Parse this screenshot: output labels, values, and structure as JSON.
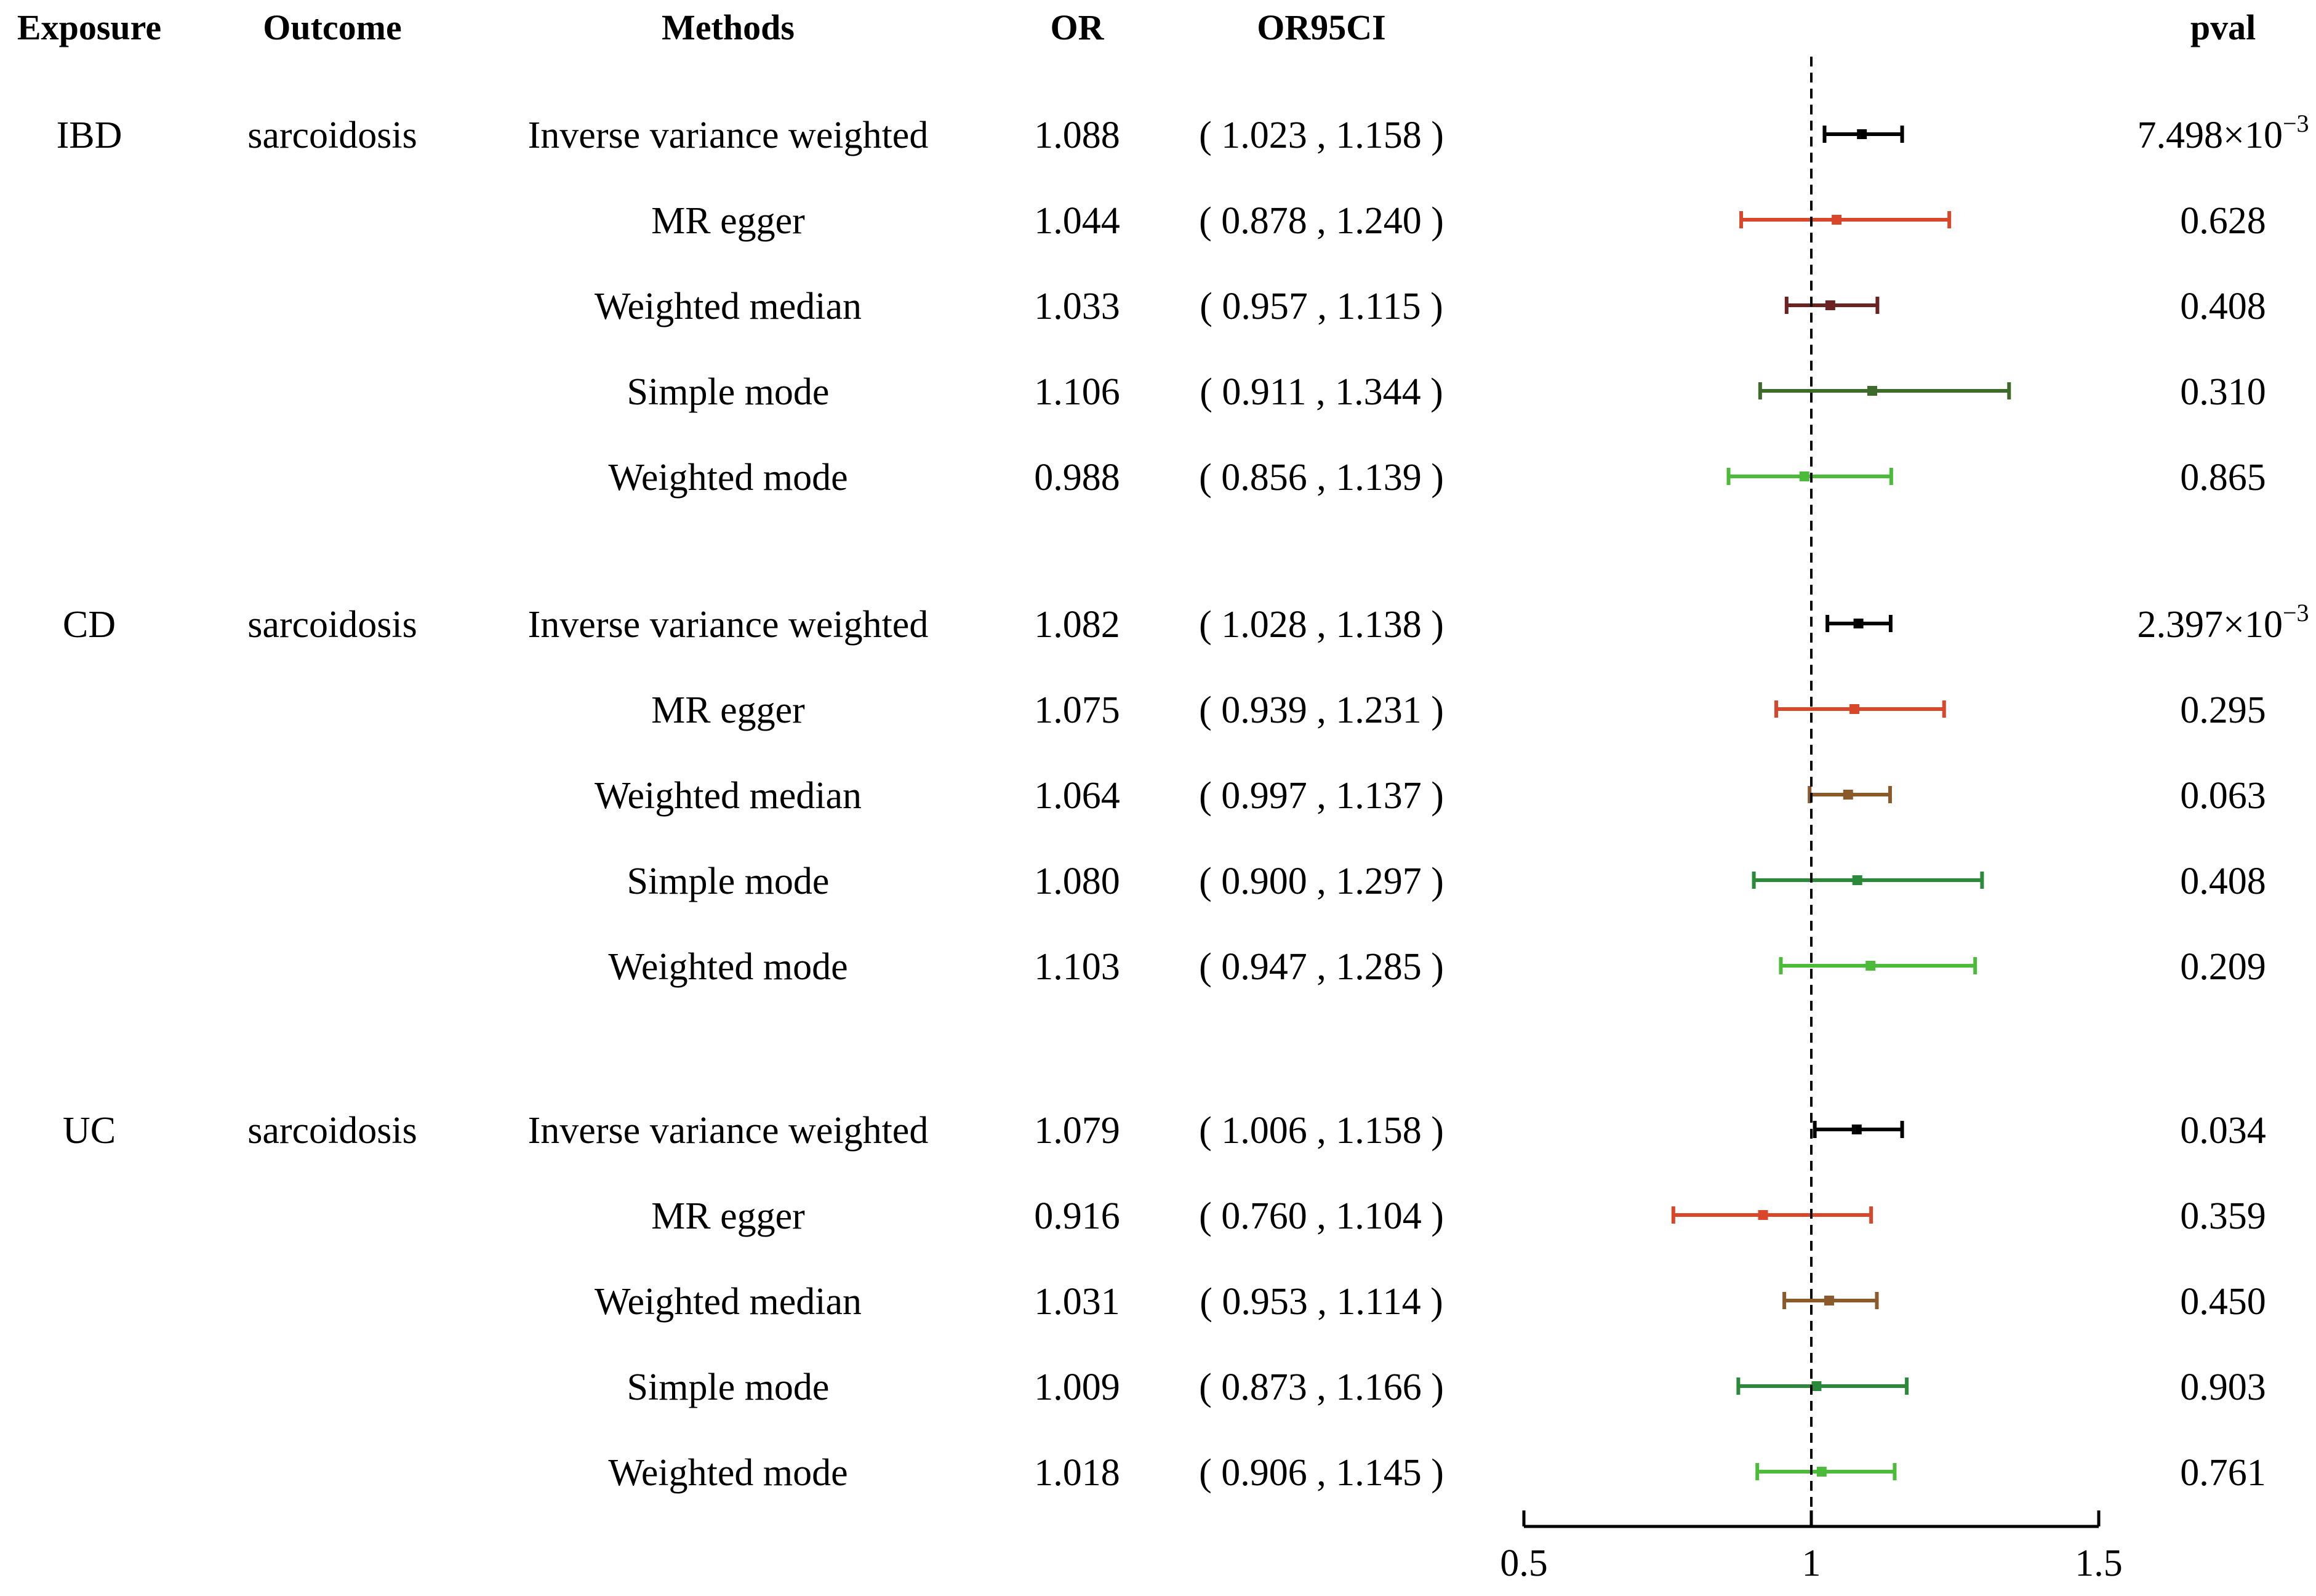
{
  "chart_data": {
    "type": "forest",
    "headers": {
      "exposure": "Exposure",
      "outcome": "Outcome",
      "methods": "Methods",
      "or": "OR",
      "ci": "OR95CI",
      "pval": "pval"
    },
    "x_axis": {
      "range": [
        0.5,
        1.5
      ],
      "ticks": [
        0.5,
        1,
        1.5
      ],
      "tick_labels": [
        "0.5",
        "1",
        "1.5"
      ],
      "reference_line": 1
    },
    "groups": [
      {
        "exposure": "IBD",
        "outcome": "sarcoidosis",
        "rows": [
          {
            "method": "Inverse variance weighted",
            "or": 1.088,
            "lo": 1.023,
            "hi": 1.158,
            "or_text": "1.088",
            "ci_text": "( 1.023 , 1.158 )",
            "pval_base": "7.498×10",
            "pval_exp": "−3",
            "color": "#000000"
          },
          {
            "method": "MR egger",
            "or": 1.044,
            "lo": 0.878,
            "hi": 1.24,
            "or_text": "1.044",
            "ci_text": "( 0.878 , 1.240 )",
            "pval_base": "0.628",
            "pval_exp": "",
            "color": "#d9472b"
          },
          {
            "method": "Weighted median",
            "or": 1.033,
            "lo": 0.957,
            "hi": 1.115,
            "or_text": "1.033",
            "ci_text": "( 0.957 , 1.115 )",
            "pval_base": "0.408",
            "pval_exp": "",
            "color": "#6b2222"
          },
          {
            "method": "Simple mode",
            "or": 1.106,
            "lo": 0.911,
            "hi": 1.344,
            "or_text": "1.106",
            "ci_text": "( 0.911 , 1.344 )",
            "pval_base": "0.310",
            "pval_exp": "",
            "color": "#3d6b2a"
          },
          {
            "method": "Weighted mode",
            "or": 0.988,
            "lo": 0.856,
            "hi": 1.139,
            "or_text": "0.988",
            "ci_text": "( 0.856 , 1.139 )",
            "pval_base": "0.865",
            "pval_exp": "",
            "color": "#4cbb3a"
          }
        ]
      },
      {
        "exposure": "CD",
        "outcome": "sarcoidosis",
        "rows": [
          {
            "method": "Inverse variance weighted",
            "or": 1.082,
            "lo": 1.028,
            "hi": 1.138,
            "or_text": "1.082",
            "ci_text": "( 1.028 , 1.138 )",
            "pval_base": "2.397×10",
            "pval_exp": "−3",
            "color": "#000000"
          },
          {
            "method": "MR egger",
            "or": 1.075,
            "lo": 0.939,
            "hi": 1.231,
            "or_text": "1.075",
            "ci_text": "( 0.939 , 1.231 )",
            "pval_base": "0.295",
            "pval_exp": "",
            "color": "#d9472b"
          },
          {
            "method": "Weighted median",
            "or": 1.064,
            "lo": 0.997,
            "hi": 1.137,
            "or_text": "1.064",
            "ci_text": "( 0.997 , 1.137 )",
            "pval_base": "0.063",
            "pval_exp": "",
            "color": "#8b5a2b"
          },
          {
            "method": "Simple mode",
            "or": 1.08,
            "lo": 0.9,
            "hi": 1.297,
            "or_text": "1.080",
            "ci_text": "( 0.900 , 1.297 )",
            "pval_base": "0.408",
            "pval_exp": "",
            "color": "#2a8a3a"
          },
          {
            "method": "Weighted mode",
            "or": 1.103,
            "lo": 0.947,
            "hi": 1.285,
            "or_text": "1.103",
            "ci_text": "( 0.947 , 1.285 )",
            "pval_base": "0.209",
            "pval_exp": "",
            "color": "#4cbb3a"
          }
        ]
      },
      {
        "exposure": "UC",
        "outcome": "sarcoidosis",
        "rows": [
          {
            "method": "Inverse variance weighted",
            "or": 1.079,
            "lo": 1.006,
            "hi": 1.158,
            "or_text": "1.079",
            "ci_text": "( 1.006 , 1.158 )",
            "pval_base": "0.034",
            "pval_exp": "",
            "color": "#000000"
          },
          {
            "method": "MR egger",
            "or": 0.916,
            "lo": 0.76,
            "hi": 1.104,
            "or_text": "0.916",
            "ci_text": "( 0.760 , 1.104 )",
            "pval_base": "0.359",
            "pval_exp": "",
            "color": "#d9472b"
          },
          {
            "method": "Weighted median",
            "or": 1.031,
            "lo": 0.953,
            "hi": 1.114,
            "or_text": "1.031",
            "ci_text": "( 0.953 , 1.114 )",
            "pval_base": "0.450",
            "pval_exp": "",
            "color": "#8b5a2b"
          },
          {
            "method": "Simple mode",
            "or": 1.009,
            "lo": 0.873,
            "hi": 1.166,
            "or_text": "1.009",
            "ci_text": "( 0.873 , 1.166 )",
            "pval_base": "0.903",
            "pval_exp": "",
            "color": "#2a8a3a"
          },
          {
            "method": "Weighted mode",
            "or": 1.018,
            "lo": 0.906,
            "hi": 1.145,
            "or_text": "1.018",
            "ci_text": "( 0.906 , 1.145 )",
            "pval_base": "0.761",
            "pval_exp": "",
            "color": "#4cbb3a"
          }
        ]
      }
    ]
  }
}
